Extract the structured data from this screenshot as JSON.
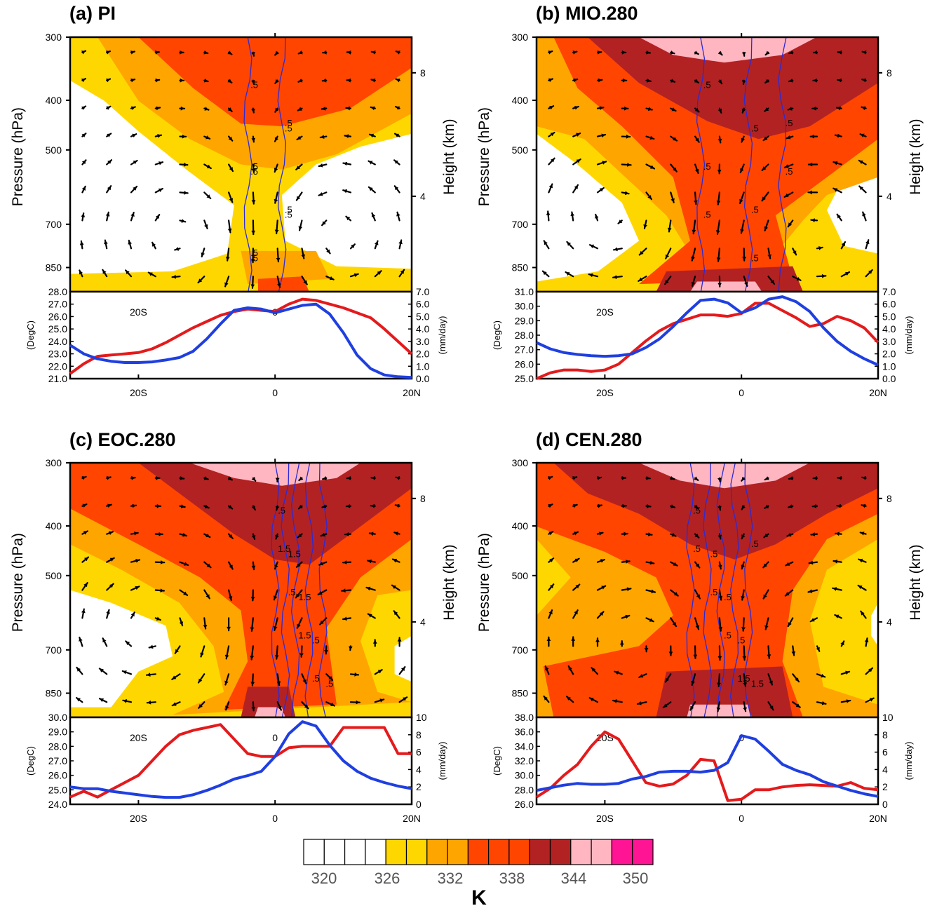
{
  "chart_data": [
    {
      "id": "a",
      "title": "(a) PI",
      "type": "cross_section",
      "upper": {
        "left_axis_label": "Pressure (hPa)",
        "right_axis_label": "Height (km)",
        "pressure_ticks": [
          300,
          400,
          500,
          700,
          850
        ],
        "height_ticks": [
          8,
          4
        ],
        "contour_labels": [
          ".5",
          ".5",
          ".5",
          ".5",
          ".5",
          ".5",
          ".5",
          ".5",
          ".5"
        ]
      },
      "lower": {
        "type": "line",
        "left_axis_label": "(DegC)",
        "right_axis_label": "(mm/day)",
        "left_ticks": [
          "28.0",
          "27.0",
          "26.0",
          "25.0",
          "24.0",
          "23.0",
          "22.0",
          "21.0"
        ],
        "right_ticks": [
          "7.0",
          "6.0",
          "5.0",
          "4.0",
          "3.0",
          "2.0",
          "1.0",
          "0.0"
        ],
        "left_range": [
          21,
          28
        ],
        "right_range": [
          0,
          7
        ],
        "inner_labels": [
          "20S",
          "0"
        ],
        "x": [
          -30,
          -28,
          -26,
          -24,
          -22,
          -20,
          -18,
          -16,
          -14,
          -12,
          -10,
          -8,
          -6,
          -4,
          -2,
          0,
          2,
          4,
          6,
          8,
          10,
          12,
          14,
          16,
          18,
          20
        ],
        "series": [
          {
            "color": "#e41a1c",
            "axis": "left",
            "values": [
              21.4,
              22.2,
              22.8,
              22.9,
              23.0,
              23.1,
              23.4,
              23.9,
              24.5,
              25.1,
              25.6,
              26.1,
              26.4,
              26.6,
              26.5,
              26.4,
              27.0,
              27.4,
              27.3,
              27.0,
              26.7,
              26.3,
              25.9,
              25.0,
              24.0,
              23.0
            ]
          },
          {
            "color": "#1f3fe0",
            "axis": "right",
            "values": [
              2.7,
              2.0,
              1.6,
              1.4,
              1.3,
              1.3,
              1.35,
              1.5,
              1.7,
              2.2,
              3.2,
              4.4,
              5.5,
              5.7,
              5.6,
              5.3,
              5.6,
              5.9,
              6.0,
              5.2,
              3.7,
              1.9,
              0.8,
              0.3,
              0.15,
              0.1
            ]
          }
        ],
        "x_tick_labels": [
          "20S",
          "0",
          "20N"
        ]
      }
    },
    {
      "id": "b",
      "title": "(b) MIO.280",
      "type": "cross_section",
      "upper": {
        "left_axis_label": "Pressure (hPa)",
        "right_axis_label": "Height (km)",
        "pressure_ticks": [
          300,
          400,
          500,
          700,
          850
        ],
        "height_ticks": [
          8,
          4
        ],
        "contour_labels": [
          ".5",
          ".5",
          ".5",
          ".5",
          ".5",
          ".5",
          ".5",
          ".5"
        ]
      },
      "lower": {
        "type": "line",
        "left_axis_label": "(DegC)",
        "right_axis_label": "(mm/day)",
        "left_ticks": [
          "31.0",
          "30.0",
          "29.0",
          "28.0",
          "27.0",
          "26.0",
          "25.0"
        ],
        "right_ticks": [
          "7.0",
          "6.0",
          "5.0",
          "4.0",
          "3.0",
          "2.0",
          "1.0",
          "0.0"
        ],
        "left_range": [
          25,
          31
        ],
        "right_range": [
          0,
          7
        ],
        "inner_labels": [
          "20S"
        ],
        "x": [
          -30,
          -28,
          -26,
          -24,
          -22,
          -20,
          -18,
          -16,
          -14,
          -12,
          -10,
          -8,
          -6,
          -4,
          -2,
          0,
          2,
          4,
          6,
          8,
          10,
          12,
          14,
          16,
          18,
          20
        ],
        "series": [
          {
            "color": "#e41a1c",
            "axis": "left",
            "values": [
              25.0,
              25.4,
              25.6,
              25.6,
              25.5,
              25.6,
              26.0,
              26.8,
              27.6,
              28.3,
              28.8,
              29.1,
              29.4,
              29.4,
              29.3,
              29.5,
              30.2,
              30.2,
              29.7,
              29.2,
              28.6,
              28.8,
              29.3,
              29.0,
              28.5,
              27.5
            ]
          },
          {
            "color": "#1f3fe0",
            "axis": "right",
            "values": [
              2.9,
              2.4,
              2.1,
              1.95,
              1.85,
              1.8,
              1.85,
              2.0,
              2.5,
              3.2,
              4.2,
              5.3,
              6.3,
              6.4,
              6.1,
              5.3,
              5.7,
              6.4,
              6.6,
              6.2,
              5.4,
              4.1,
              3.0,
              2.2,
              1.6,
              1.1
            ]
          }
        ],
        "x_tick_labels": [
          "20S",
          "0",
          "20N"
        ]
      }
    },
    {
      "id": "c",
      "title": "(c) EOC.280",
      "type": "cross_section",
      "upper": {
        "left_axis_label": "Pressure (hPa)",
        "right_axis_label": "Height (km)",
        "pressure_ticks": [
          300,
          400,
          500,
          700,
          850
        ],
        "height_ticks": [
          8,
          4
        ],
        "contour_labels": [
          ".5",
          "1.5",
          "1.5",
          ".5",
          ".5",
          "1.5",
          ".5",
          "1.5",
          ".5"
        ]
      },
      "lower": {
        "type": "line",
        "left_axis_label": "(DegC)",
        "right_axis_label": "(mm/day)",
        "left_ticks": [
          "30.0",
          "29.0",
          "28.0",
          "27.0",
          "26.0",
          "25.0",
          "24.0"
        ],
        "right_ticks": [
          "10",
          "8",
          "6",
          "4",
          "2",
          "0"
        ],
        "left_range": [
          24,
          30
        ],
        "right_range": [
          0,
          10
        ],
        "inner_labels": [
          "20S",
          "0"
        ],
        "x": [
          -30,
          -28,
          -26,
          -24,
          -22,
          -20,
          -18,
          -16,
          -14,
          -12,
          -10,
          -8,
          -6,
          -4,
          -2,
          0,
          2,
          4,
          6,
          8,
          10,
          12,
          14,
          16,
          18,
          20
        ],
        "series": [
          {
            "color": "#e41a1c",
            "axis": "left",
            "values": [
              24.5,
              24.9,
              24.5,
              25.0,
              25.5,
              26.0,
              27.0,
              28.0,
              28.8,
              29.1,
              29.3,
              29.5,
              28.5,
              27.5,
              27.3,
              27.3,
              27.9,
              28.0,
              28.0,
              28.0,
              29.3,
              29.3,
              29.3,
              29.3,
              27.5,
              27.5
            ]
          },
          {
            "color": "#1f3fe0",
            "axis": "right",
            "values": [
              2.0,
              1.8,
              1.8,
              1.5,
              1.3,
              1.1,
              0.9,
              0.8,
              0.8,
              1.1,
              1.6,
              2.2,
              2.9,
              3.3,
              3.8,
              5.5,
              8.1,
              9.5,
              9.0,
              6.8,
              5.0,
              3.8,
              3.0,
              2.5,
              2.1,
              1.8
            ]
          }
        ],
        "x_tick_labels": [
          "20S",
          "0",
          "20N"
        ]
      }
    },
    {
      "id": "d",
      "title": "(d) CEN.280",
      "type": "cross_section",
      "upper": {
        "left_axis_label": "Pressure (hPa)",
        "right_axis_label": "Height (km)",
        "pressure_ticks": [
          300,
          400,
          500,
          700,
          850
        ],
        "height_ticks": [
          8,
          4
        ],
        "contour_labels": [
          ".5",
          ".5",
          ".5",
          ".5",
          "1.5",
          ".5",
          ".5",
          ".5",
          "1.5",
          ".5"
        ]
      },
      "lower": {
        "type": "line",
        "left_axis_label": "(DegC)",
        "right_axis_label": "(mm/day)",
        "left_ticks": [
          "38.0",
          "36.0",
          "34.0",
          "32.0",
          "30.0",
          "28.0",
          "26.0"
        ],
        "right_ticks": [
          "10",
          "8",
          "6",
          "4",
          "2",
          "0"
        ],
        "left_range": [
          26,
          38
        ],
        "right_range": [
          0,
          10
        ],
        "inner_labels": [
          "20S",
          "0"
        ],
        "x": [
          -30,
          -28,
          -26,
          -24,
          -22,
          -20,
          -18,
          -16,
          -14,
          -12,
          -10,
          -8,
          -6,
          -4,
          -2,
          0,
          2,
          4,
          6,
          8,
          10,
          12,
          14,
          16,
          18,
          20
        ],
        "series": [
          {
            "color": "#e41a1c",
            "axis": "left",
            "values": [
              27.0,
              28.2,
              30.0,
              31.5,
              34.0,
              36.0,
              35.0,
              32.0,
              29.0,
              28.5,
              28.8,
              30.0,
              32.2,
              32.0,
              26.5,
              26.7,
              28.0,
              28.0,
              28.4,
              28.6,
              28.7,
              28.6,
              28.5,
              29.0,
              28.2,
              28.0
            ]
          },
          {
            "color": "#1f3fe0",
            "axis": "right",
            "values": [
              1.6,
              1.9,
              2.2,
              2.4,
              2.3,
              2.3,
              2.4,
              2.9,
              3.2,
              3.7,
              3.8,
              3.8,
              3.7,
              3.9,
              4.8,
              7.9,
              7.5,
              6.1,
              4.6,
              3.9,
              3.4,
              2.6,
              2.1,
              1.6,
              1.2,
              0.9
            ]
          }
        ],
        "x_tick_labels": [
          "20S",
          "0",
          "20N"
        ]
      }
    }
  ],
  "colorbar": {
    "colors": [
      "#ffffff",
      "#ffffff",
      "#ffffff",
      "#ffffff",
      "#ffd700",
      "#ffd700",
      "#ffa500",
      "#ffa500",
      "#ff4500",
      "#ff4500",
      "#ff4500",
      "#b22222",
      "#b22222",
      "#ffb6c1",
      "#ffb6c1",
      "#ff1493",
      "#ff1493"
    ],
    "tick_labels": [
      "320",
      "326",
      "332",
      "338",
      "344",
      "350"
    ],
    "units": "K"
  },
  "theta_colors": {
    "white": "#ffffff",
    "yellow": "#ffd700",
    "orange": "#ffa500",
    "red": "#ff4500",
    "darkred": "#b22222",
    "pink": "#ffb6c1"
  }
}
